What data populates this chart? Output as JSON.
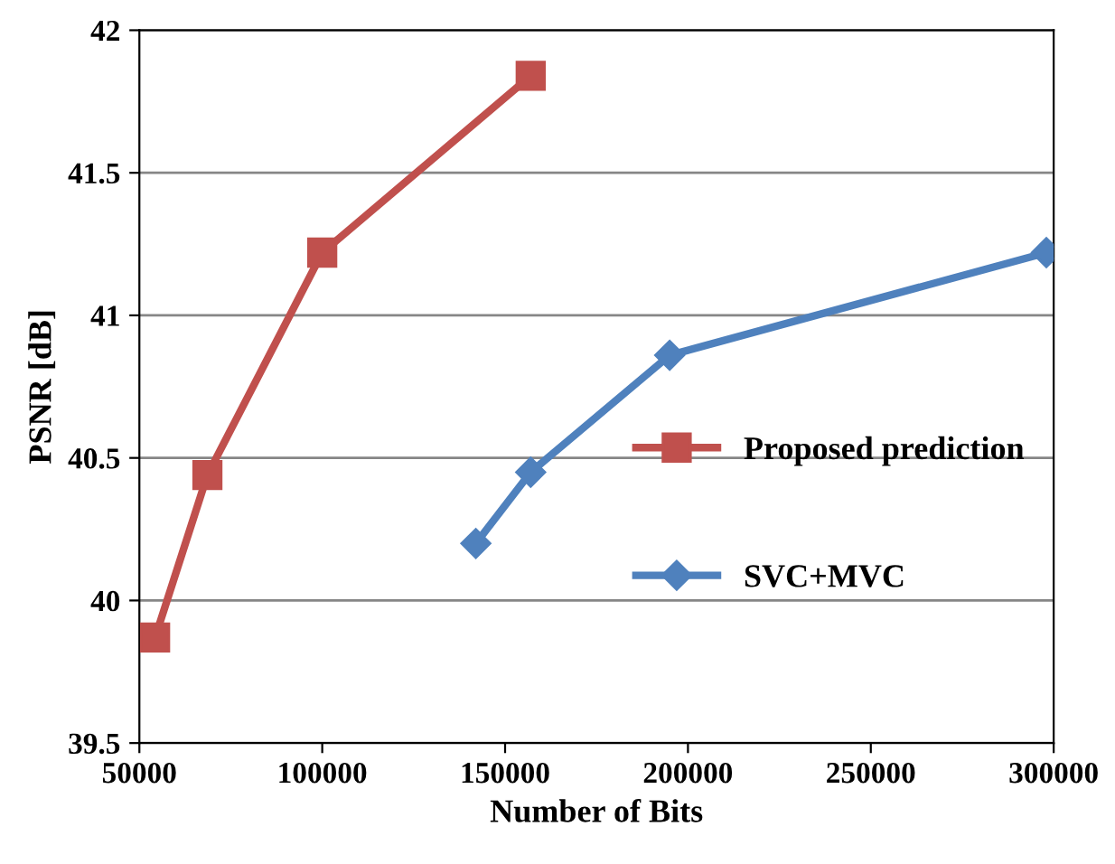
{
  "chart_data": {
    "type": "line",
    "xlabel": "Number of Bits",
    "ylabel": "PSNR [dB]",
    "xlim": [
      50000,
      300000
    ],
    "xticks": [
      50000,
      100000,
      150000,
      200000,
      250000,
      300000
    ],
    "ylim": [
      39.5,
      42
    ],
    "yticks": [
      39.5,
      40,
      40.5,
      41,
      41.5,
      42
    ],
    "grid": "y",
    "legend": "right",
    "line_style": "solid",
    "series": [
      {
        "name": "Proposed prediction",
        "color": "#c0504d",
        "marker": "square",
        "x": [
          54300,
          68600,
          100000,
          157000
        ],
        "values": [
          39.87,
          40.44,
          41.22,
          41.84
        ]
      },
      {
        "name": "SVC+MVC",
        "color": "#4f81bd",
        "marker": "diamond",
        "x": [
          142000,
          157000,
          195000,
          298000
        ],
        "values": [
          40.2,
          40.45,
          40.86,
          41.22
        ]
      }
    ]
  }
}
